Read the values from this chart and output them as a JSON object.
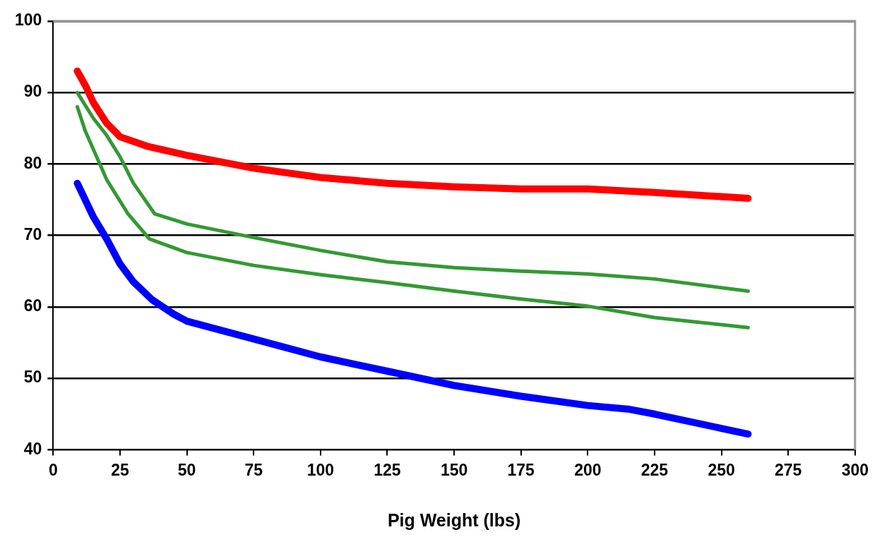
{
  "chart_data": {
    "type": "line",
    "xlabel": "Pig Weight (lbs)",
    "xlim": [
      0,
      300
    ],
    "xticks": [
      0,
      25,
      50,
      75,
      100,
      125,
      150,
      175,
      200,
      225,
      250,
      275,
      300
    ],
    "ylim": [
      40,
      100
    ],
    "yticks": [
      40,
      50,
      60,
      70,
      80,
      90,
      100
    ],
    "grid": "y",
    "legend": false,
    "marker": "none",
    "line_style": "solid",
    "series": [
      {
        "color": "#ff0000",
        "x": [
          9,
          12,
          15,
          20,
          25,
          35,
          50,
          75,
          100,
          125,
          150,
          175,
          200,
          225,
          260
        ],
        "values": [
          93,
          91,
          88.6,
          85.7,
          83.8,
          82.5,
          81.2,
          79.4,
          78.1,
          77.3,
          76.8,
          76.5,
          76.5,
          76,
          75.2
        ]
      },
      {
        "color": "#339933",
        "x": [
          9,
          15,
          20,
          25,
          30,
          38,
          50,
          75,
          100,
          125,
          150,
          175,
          200,
          225,
          260
        ],
        "values": [
          90,
          86.4,
          84,
          81,
          77.3,
          73,
          71.6,
          69.7,
          67.9,
          66.3,
          65.5,
          65,
          64.6,
          63.9,
          62.2
        ]
      },
      {
        "color": "#339933",
        "x": [
          9,
          12,
          20,
          28,
          36,
          50,
          75,
          100,
          125,
          150,
          175,
          200,
          225,
          260
        ],
        "values": [
          88,
          84.6,
          77.8,
          73,
          69.5,
          67.6,
          65.8,
          64.5,
          63.4,
          62.2,
          61.1,
          60.1,
          58.5,
          57.1
        ]
      },
      {
        "color": "#0000ff",
        "x": [
          9,
          15,
          20,
          25,
          30,
          37,
          45,
          50,
          75,
          100,
          125,
          150,
          175,
          200,
          215,
          225,
          250,
          260
        ],
        "values": [
          77.3,
          72.6,
          69.5,
          66,
          63.5,
          61,
          59,
          58,
          55.5,
          53,
          51,
          49,
          47.5,
          46.2,
          45.7,
          45,
          43,
          42.2
        ]
      }
    ]
  }
}
